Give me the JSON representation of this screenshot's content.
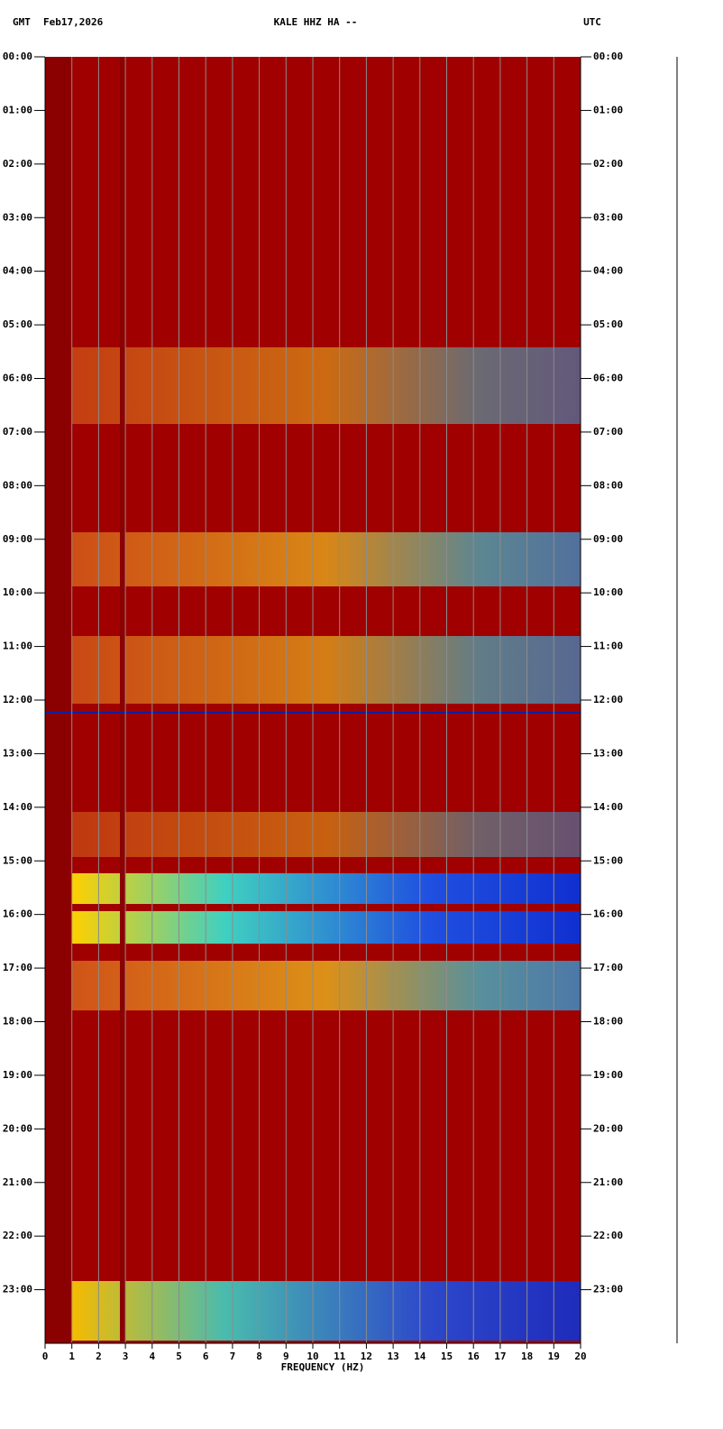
{
  "chart_data": {
    "type": "spectrogram",
    "title": "KALE HHZ HA --",
    "left_header": "GMT",
    "date": "Feb17,2026",
    "right_header": "UTC",
    "x_label": "FREQUENCY (HZ)",
    "xlim": [
      0,
      20
    ],
    "xticks": [
      0,
      1,
      2,
      3,
      4,
      5,
      6,
      7,
      8,
      9,
      10,
      11,
      12,
      13,
      14,
      15,
      16,
      17,
      18,
      19,
      20
    ],
    "ylim": [
      0,
      24
    ],
    "yticks": [
      {
        "value": 0,
        "label": "00:00"
      },
      {
        "value": 1,
        "label": "01:00"
      },
      {
        "value": 2,
        "label": "02:00"
      },
      {
        "value": 3,
        "label": "03:00"
      },
      {
        "value": 4,
        "label": "04:00"
      },
      {
        "value": 5,
        "label": "05:00"
      },
      {
        "value": 6,
        "label": "06:00"
      },
      {
        "value": 7,
        "label": "07:00"
      },
      {
        "value": 8,
        "label": "08:00"
      },
      {
        "value": 9,
        "label": "09:00"
      },
      {
        "value": 10,
        "label": "10:00"
      },
      {
        "value": 11,
        "label": "11:00"
      },
      {
        "value": 12,
        "label": "12:00"
      },
      {
        "value": 13,
        "label": "13:00"
      },
      {
        "value": 14,
        "label": "14:00"
      },
      {
        "value": 15,
        "label": "15:00"
      },
      {
        "value": 16,
        "label": "16:00"
      },
      {
        "value": 17,
        "label": "17:00"
      },
      {
        "value": 18,
        "label": "18:00"
      },
      {
        "value": 19,
        "label": "19:00"
      },
      {
        "value": 20,
        "label": "20:00"
      },
      {
        "value": 21,
        "label": "21:00"
      },
      {
        "value": 22,
        "label": "22:00"
      },
      {
        "value": 23,
        "label": "23:00"
      }
    ],
    "grid": true,
    "grid_color": "#8c8c8c"
  }
}
